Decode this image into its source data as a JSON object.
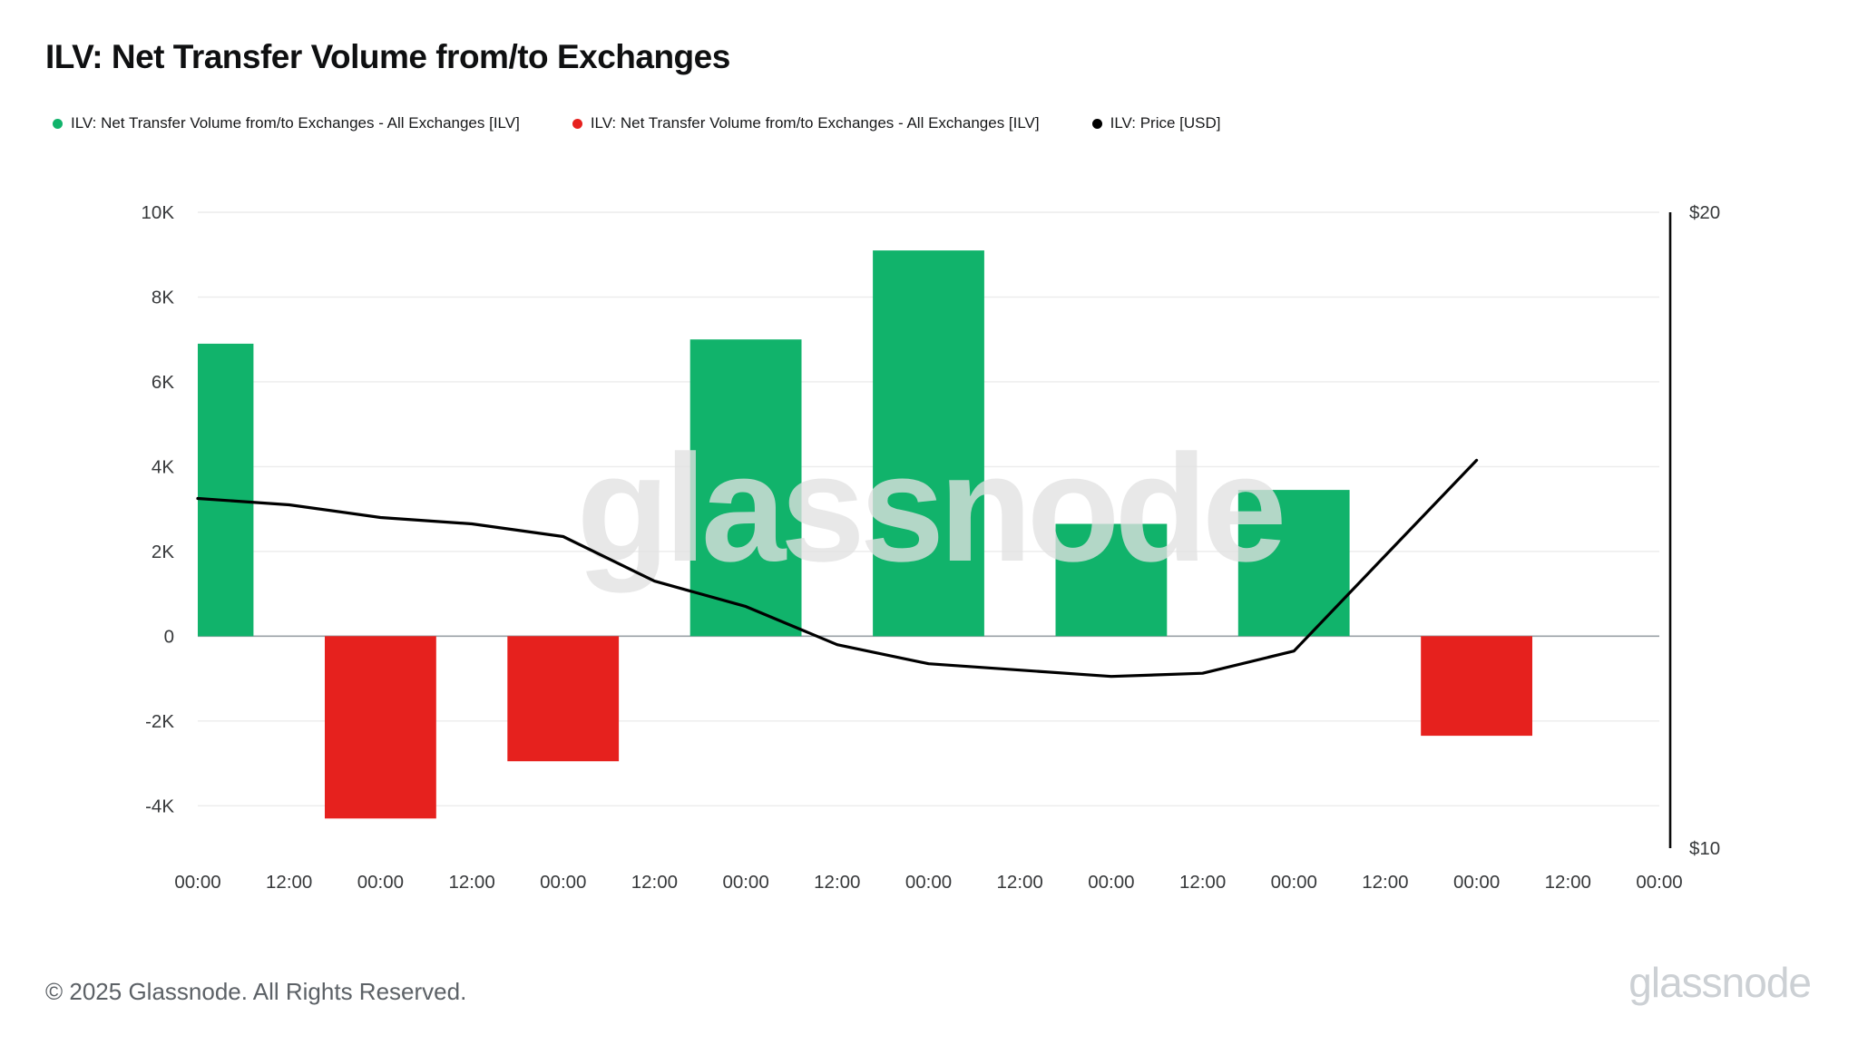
{
  "page": {
    "title": "ILV: Net Transfer Volume from/to Exchanges",
    "footer_copyright": "© 2025 Glassnode. All Rights Reserved.",
    "brand": "glassnode",
    "watermark": "glassnode"
  },
  "legend": [
    {
      "label": "ILV: Net Transfer Volume from/to Exchanges - All Exchanges [ILV]",
      "color": "#11b36b"
    },
    {
      "label": "ILV: Net Transfer Volume from/to Exchanges - All Exchanges [ILV]",
      "color": "#e6211e"
    },
    {
      "label": "ILV: Price [USD]",
      "color": "#000000"
    }
  ],
  "chart_data": {
    "type": "bar",
    "title": "ILV: Net Transfer Volume from/to Exchanges",
    "x_tick_labels": [
      "00:00",
      "12:00",
      "00:00",
      "12:00",
      "00:00",
      "12:00",
      "00:00",
      "12:00",
      "00:00",
      "12:00",
      "00:00",
      "12:00",
      "00:00",
      "12:00",
      "00:00",
      "12:00",
      "00:00"
    ],
    "left_axis": {
      "tick_labels": [
        "10K",
        "8K",
        "6K",
        "4K",
        "2K",
        "0",
        "-2K",
        "-4K"
      ],
      "tick_values": [
        10000,
        8000,
        6000,
        4000,
        2000,
        0,
        -2000,
        -4000
      ],
      "min": -5000,
      "max": 10000,
      "unit": "ILV"
    },
    "right_axis": {
      "tick_labels": [
        "$20",
        "$10"
      ],
      "tick_values": [
        20,
        10
      ],
      "min": 10,
      "max": 20,
      "label": "ILV: Price [USD]"
    },
    "bar_series": {
      "name": "ILV: Net Transfer Volume from/to Exchanges - All Exchanges [ILV]",
      "positive_color": "#11b36b",
      "negative_color": "#e6211e",
      "tick_indices": [
        0,
        2,
        4,
        6,
        8,
        10,
        12,
        14
      ],
      "values": [
        6900,
        -4300,
        -2950,
        7000,
        9100,
        2650,
        3450,
        -2350
      ]
    },
    "line_series": {
      "name": "ILV: Price [USD]",
      "color": "#000000",
      "tick_indices": [
        0,
        1,
        2,
        3,
        4,
        5,
        6,
        7,
        8,
        9,
        10,
        11,
        12,
        13,
        14
      ],
      "values": [
        15.5,
        15.4,
        15.2,
        15.1,
        14.9,
        14.2,
        13.8,
        13.2,
        12.9,
        12.8,
        12.7,
        12.75,
        13.1,
        14.6,
        16.1
      ]
    },
    "grid": true,
    "legend_position": "top-left"
  }
}
